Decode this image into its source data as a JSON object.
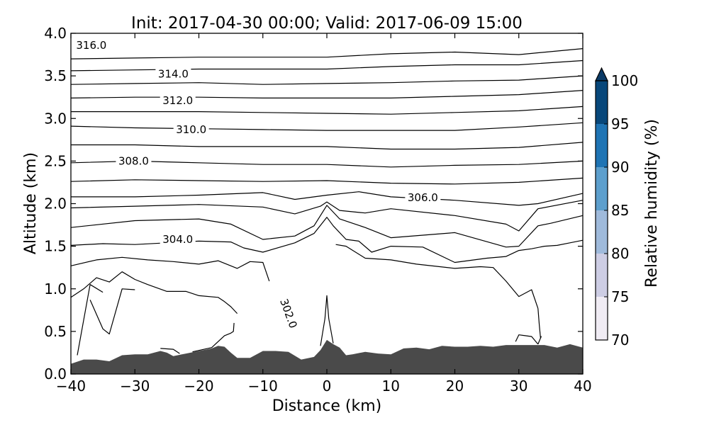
{
  "chart_data": {
    "type": "contour",
    "title": "Init: 2017-04-30 00:00; Valid: 2017-06-09 15:00",
    "xlabel": "Distance (km)",
    "ylabel": "Altitude (km)",
    "xlim": [
      -40,
      40
    ],
    "ylim": [
      0.0,
      4.0
    ],
    "xticks": [
      "−40",
      "−30",
      "−20",
      "−10",
      "0",
      "10",
      "20",
      "30",
      "40"
    ],
    "yticks": [
      "0.0",
      "0.5",
      "1.0",
      "1.5",
      "2.0",
      "2.5",
      "3.0",
      "3.5",
      "4.0"
    ],
    "colorbar": {
      "label": "Relative humidity (%)",
      "ticks": [
        "70",
        "75",
        "80",
        "85",
        "90",
        "95",
        "100"
      ],
      "levels": [
        {
          "from": 70,
          "to": 75,
          "color": "#f0ecf4"
        },
        {
          "from": 75,
          "to": 80,
          "color": "#cdcde4"
        },
        {
          "from": 80,
          "to": 85,
          "color": "#9fbadb"
        },
        {
          "from": 85,
          "to": 90,
          "color": "#5d9fcd"
        },
        {
          "from": 90,
          "to": 95,
          "color": "#1f74b4"
        },
        {
          "from": 95,
          "to": 100,
          "color": "#08477a"
        }
      ],
      "extend": "max",
      "extend_color": "#0a3a66"
    },
    "terrain_color": "#4a4a4a",
    "terrain": {
      "x": [
        -40,
        -38,
        -36,
        -34,
        -32,
        -30,
        -28,
        -26,
        -25,
        -24,
        -22,
        -20,
        -18,
        -17,
        -16,
        -15,
        -14,
        -12,
        -10,
        -8,
        -6,
        -4,
        -2,
        -1,
        0,
        1,
        2,
        3,
        4,
        6,
        8,
        10,
        12,
        14,
        16,
        18,
        20,
        22,
        24,
        26,
        28,
        30,
        32,
        34,
        36,
        38,
        40
      ],
      "y": [
        0.12,
        0.17,
        0.17,
        0.15,
        0.22,
        0.23,
        0.23,
        0.27,
        0.25,
        0.21,
        0.24,
        0.27,
        0.3,
        0.33,
        0.32,
        0.25,
        0.19,
        0.19,
        0.27,
        0.27,
        0.26,
        0.17,
        0.2,
        0.28,
        0.4,
        0.35,
        0.31,
        0.22,
        0.23,
        0.26,
        0.24,
        0.23,
        0.3,
        0.31,
        0.29,
        0.33,
        0.32,
        0.32,
        0.33,
        0.32,
        0.34,
        0.34,
        0.34,
        0.34,
        0.31,
        0.35,
        0.31
      ]
    },
    "contour_labels": [
      {
        "text": "316.0",
        "x": -36.8,
        "y": 3.86
      },
      {
        "text": "314.0",
        "x": -24.0,
        "y": 3.52
      },
      {
        "text": "312.0",
        "x": -23.3,
        "y": 3.21
      },
      {
        "text": "310.0",
        "x": -21.2,
        "y": 2.87
      },
      {
        "text": "308.0",
        "x": -30.2,
        "y": 2.5
      },
      {
        "text": "306.0",
        "x": 15.0,
        "y": 2.07
      },
      {
        "text": "304.0",
        "x": -23.3,
        "y": 1.58
      },
      {
        "text": "302.0",
        "x": -6.0,
        "y": 0.71,
        "rotate": 70
      }
    ],
    "contours": [
      {
        "x": [
          -40,
          -30,
          -20,
          -10,
          0,
          10,
          20,
          30,
          40
        ],
        "y": [
          3.7,
          3.71,
          3.72,
          3.72,
          3.72,
          3.76,
          3.78,
          3.75,
          3.82
        ]
      },
      {
        "x": [
          -40,
          -30,
          -20,
          -10,
          0,
          10,
          20,
          30,
          40
        ],
        "y": [
          3.56,
          3.57,
          3.58,
          3.58,
          3.58,
          3.61,
          3.63,
          3.63,
          3.68
        ]
      },
      {
        "x": [
          -40,
          -30,
          -20,
          -10,
          0,
          10,
          20,
          30,
          40
        ],
        "y": [
          3.4,
          3.41,
          3.42,
          3.4,
          3.41,
          3.42,
          3.44,
          3.45,
          3.5
        ]
      },
      {
        "x": [
          -40,
          -30,
          -20,
          -10,
          0,
          10,
          20,
          30,
          40
        ],
        "y": [
          3.24,
          3.25,
          3.25,
          3.24,
          3.24,
          3.24,
          3.26,
          3.28,
          3.33
        ]
      },
      {
        "x": [
          -40,
          -30,
          -20,
          -10,
          0,
          10,
          20,
          30,
          40
        ],
        "y": [
          3.08,
          3.08,
          3.08,
          3.07,
          3.06,
          3.05,
          3.07,
          3.09,
          3.14
        ]
      },
      {
        "x": [
          -40,
          -30,
          -20,
          -10,
          0,
          10,
          20,
          30,
          40
        ],
        "y": [
          2.91,
          2.89,
          2.88,
          2.87,
          2.86,
          2.86,
          2.86,
          2.9,
          2.95
        ]
      },
      {
        "x": [
          -40,
          -30,
          -20,
          -10,
          0,
          10,
          20,
          30,
          40
        ],
        "y": [
          2.69,
          2.69,
          2.67,
          2.67,
          2.67,
          2.64,
          2.64,
          2.66,
          2.72
        ]
      },
      {
        "x": [
          -40,
          -30,
          -20,
          -10,
          0,
          10,
          20,
          30,
          40
        ],
        "y": [
          2.48,
          2.5,
          2.48,
          2.46,
          2.46,
          2.43,
          2.45,
          2.46,
          2.5
        ]
      },
      {
        "x": [
          -40,
          -30,
          -20,
          -10,
          0,
          10,
          20,
          30,
          40
        ],
        "y": [
          2.26,
          2.28,
          2.27,
          2.26,
          2.27,
          2.24,
          2.23,
          2.25,
          2.3
        ]
      },
      {
        "x": [
          -40,
          -30,
          -20,
          -10,
          -5,
          0,
          5,
          10,
          20,
          30,
          33,
          40
        ],
        "y": [
          2.08,
          2.08,
          2.1,
          2.13,
          2.05,
          2.1,
          2.14,
          2.08,
          2.04,
          1.98,
          2.0,
          2.12
        ]
      },
      {
        "x": [
          -40,
          -30,
          -20,
          -10,
          -5,
          -1,
          0,
          2,
          6,
          10,
          20,
          28,
          30,
          33,
          40
        ],
        "y": [
          1.95,
          1.97,
          1.99,
          1.96,
          1.88,
          1.97,
          2.02,
          1.92,
          1.89,
          1.94,
          1.86,
          1.76,
          1.68,
          1.94,
          2.04
        ]
      },
      {
        "x": [
          -40,
          -30,
          -20,
          -15,
          -10,
          -5,
          -2,
          0,
          2,
          6,
          10,
          20,
          28,
          30,
          33,
          35,
          40
        ],
        "y": [
          1.72,
          1.8,
          1.82,
          1.76,
          1.58,
          1.62,
          1.74,
          1.98,
          1.82,
          1.72,
          1.6,
          1.66,
          1.49,
          1.5,
          1.74,
          1.77,
          1.86
        ]
      },
      {
        "x": [
          -40,
          -35,
          -30,
          -25,
          -20,
          -15,
          -13,
          -10,
          -5,
          -2,
          0,
          1,
          3,
          5,
          7,
          10,
          15,
          20,
          25,
          28,
          30,
          32,
          34,
          36,
          38,
          40
        ],
        "y": [
          1.51,
          1.53,
          1.52,
          1.54,
          1.56,
          1.55,
          1.48,
          1.43,
          1.54,
          1.65,
          1.84,
          1.74,
          1.58,
          1.56,
          1.43,
          1.5,
          1.49,
          1.31,
          1.36,
          1.38,
          1.45,
          1.47,
          1.5,
          1.51,
          1.54,
          1.57
        ]
      },
      {
        "x": [
          -40,
          -36,
          -32,
          -28,
          -24,
          -20,
          -17,
          -14,
          -12,
          -10,
          -9
        ],
        "y": [
          1.27,
          1.34,
          1.37,
          1.34,
          1.32,
          1.29,
          1.33,
          1.24,
          1.32,
          1.31,
          1.09
        ]
      },
      {
        "x": [
          -40,
          -38,
          -36,
          -34,
          -32,
          -30,
          -28,
          -25,
          -22,
          -20,
          -17,
          -16,
          -15,
          -14
        ],
        "y": [
          0.9,
          1.0,
          1.13,
          1.08,
          1.2,
          1.11,
          1.05,
          0.97,
          0.97,
          0.92,
          0.9,
          0.85,
          0.79,
          0.71
        ]
      },
      {
        "x": [
          -39,
          -37,
          -35
        ],
        "y": [
          0.22,
          1.05,
          0.96
        ]
      },
      {
        "x": [
          -37,
          -35,
          -34,
          -32,
          -30
        ],
        "y": [
          0.87,
          0.53,
          0.47,
          1.0,
          0.99
        ]
      },
      {
        "x": [
          -26,
          -24,
          -23
        ],
        "y": [
          0.3,
          0.29,
          0.24
        ]
      },
      {
        "x": [
          -21,
          -18,
          -16,
          -15,
          -14.6,
          -14.5
        ],
        "y": [
          0.26,
          0.31,
          0.45,
          0.48,
          0.5,
          0.6
        ]
      },
      {
        "x": [
          -1,
          -0.3,
          0,
          0.3,
          1
        ],
        "y": [
          0.33,
          0.65,
          0.92,
          0.65,
          0.36
        ]
      },
      {
        "x": [
          1.4,
          3,
          6,
          10,
          14,
          20,
          24,
          26,
          28,
          30,
          32,
          33
        ],
        "y": [
          1.52,
          1.5,
          1.36,
          1.34,
          1.29,
          1.24,
          1.26,
          1.25,
          1.09,
          0.91,
          0.99,
          0.77
        ]
      },
      {
        "x": [
          33,
          33.2,
          33.4,
          33.5,
          33
        ],
        "y": [
          0.77,
          0.58,
          0.42,
          0.44,
          0.35
        ]
      },
      {
        "x": [
          33,
          32,
          31,
          30,
          29.5
        ],
        "y": [
          0.35,
          0.44,
          0.45,
          0.46,
          0.38
        ]
      }
    ]
  }
}
